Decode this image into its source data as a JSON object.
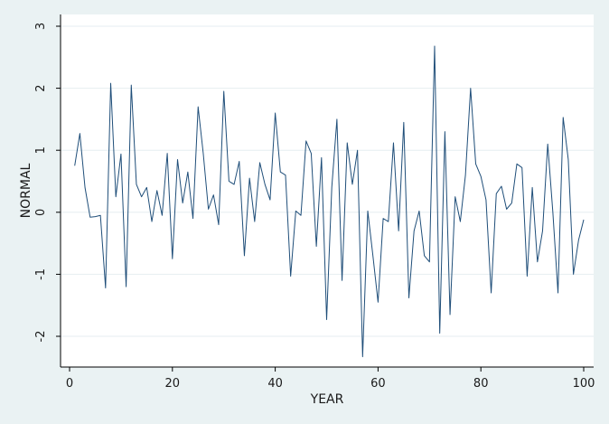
{
  "chart_data": {
    "type": "line",
    "xlabel": "YEAR",
    "ylabel": "NORMAL",
    "xlim": [
      0,
      100
    ],
    "ylim": [
      -2.4,
      3.1
    ],
    "xticks": [
      0,
      20,
      40,
      60,
      80,
      100
    ],
    "yticks": [
      3,
      2,
      1,
      0,
      -1,
      -2
    ],
    "xtick_labels": [
      "0",
      "20",
      "40",
      "60",
      "80",
      "100"
    ],
    "ytick_labels": [
      "3",
      "2",
      "1",
      "0",
      "-1",
      "-2"
    ],
    "grid": true,
    "colors": {
      "background": "#eaf2f3",
      "plot_background": "#ffffff",
      "line": "#1f4e79",
      "grid": "#e6eef0",
      "axis": "#000000"
    },
    "series": [
      {
        "x": [
          1,
          2,
          3,
          4,
          5,
          6,
          7,
          8,
          9,
          10,
          11,
          12,
          13,
          14,
          15,
          16,
          17,
          18,
          19,
          20,
          21,
          22,
          23,
          24,
          25,
          26,
          27,
          28,
          29,
          30,
          31,
          32,
          33,
          34,
          35,
          36,
          37,
          38,
          39,
          40,
          41,
          42,
          43,
          44,
          45,
          46,
          47,
          48,
          49,
          50,
          51,
          52,
          53,
          54,
          55,
          56,
          57,
          58,
          59,
          60,
          61,
          62,
          63,
          64,
          65,
          66,
          67,
          68,
          69,
          70,
          71,
          72,
          73,
          74,
          75,
          76,
          77,
          78,
          79,
          80,
          81,
          82,
          83,
          84,
          85,
          86,
          87,
          88,
          89,
          90,
          91,
          92,
          93,
          94,
          95,
          96,
          97,
          98,
          99,
          100
        ],
        "values": [
          0.75,
          1.27,
          0.4,
          -0.08,
          -0.07,
          -0.05,
          -1.22,
          2.08,
          0.25,
          0.94,
          -1.2,
          2.05,
          0.45,
          0.25,
          0.4,
          -0.15,
          0.35,
          -0.05,
          0.95,
          -0.75,
          0.85,
          0.15,
          0.65,
          -0.1,
          1.7,
          0.95,
          0.05,
          0.28,
          -0.2,
          1.95,
          0.5,
          0.45,
          0.82,
          -0.7,
          0.55,
          -0.15,
          0.8,
          0.45,
          0.2,
          1.6,
          0.65,
          0.6,
          -1.03,
          0.02,
          -0.05,
          1.15,
          0.95,
          -0.55,
          0.88,
          -1.73,
          0.4,
          1.5,
          -1.1,
          1.12,
          0.45,
          1.0,
          -2.33,
          0.02,
          -0.7,
          -1.45,
          -0.1,
          -0.15,
          1.12,
          -0.3,
          1.45,
          -1.38,
          -0.3,
          0.02,
          -0.7,
          -0.8,
          2.68,
          -1.95,
          1.3,
          -1.65,
          0.25,
          -0.15,
          0.6,
          2.0,
          0.78,
          0.58,
          0.2,
          -1.3,
          0.3,
          0.42,
          0.05,
          0.15,
          0.78,
          0.72,
          -1.03,
          0.4,
          -0.8,
          -0.3,
          1.1,
          0.0,
          -1.3,
          1.53,
          0.85,
          -1.0,
          -0.45,
          -0.12
        ]
      }
    ]
  }
}
